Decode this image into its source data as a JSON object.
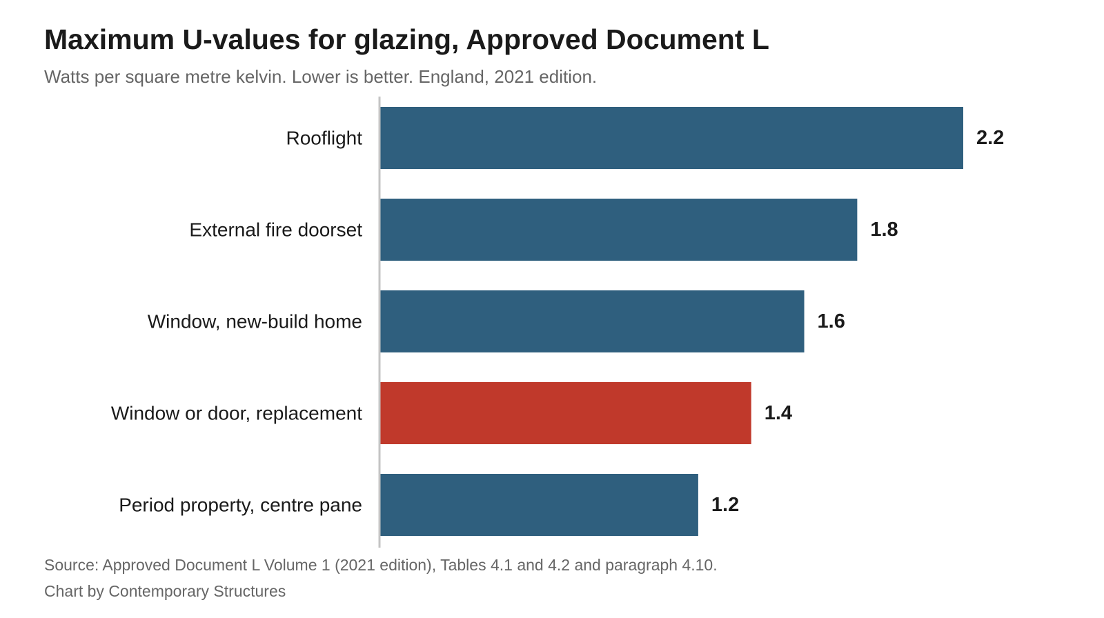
{
  "chart_data": {
    "type": "bar",
    "orientation": "horizontal",
    "title": "Maximum U-values for glazing, Approved Document L",
    "subtitle": "Watts per square metre kelvin. Lower is better. England, 2021 edition.",
    "categories": [
      "Rooflight",
      "External fire doorset",
      "Window, new-build home",
      "Window or door, replacement",
      "Period property, centre pane"
    ],
    "values": [
      2.2,
      1.8,
      1.6,
      1.4,
      1.2
    ],
    "value_labels": [
      "2.2",
      "1.8",
      "1.6",
      "1.4",
      "1.2"
    ],
    "colors": [
      "#2f5f7e",
      "#2f5f7e",
      "#2f5f7e",
      "#c0392b",
      "#2f5f7e"
    ],
    "highlight_index": 3,
    "xlim": [
      0,
      2.2
    ],
    "grid": false,
    "legend": "none",
    "source": "Source: Approved Document L Volume 1 (2021 edition), Tables 4.1 and 4.2 and paragraph 4.10.",
    "credit": "Chart by Contemporary Structures"
  }
}
